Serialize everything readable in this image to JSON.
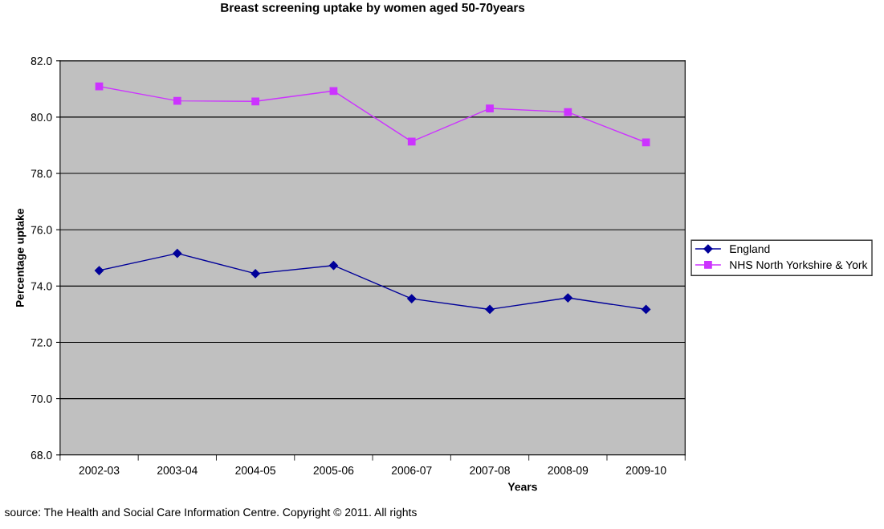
{
  "chart_data": {
    "type": "line",
    "title": "Breast screening uptake by women aged 50-70years",
    "xlabel": "Years",
    "ylabel": "Percentage uptake",
    "categories": [
      "2002-03",
      "2003-04",
      "2004-05",
      "2005-06",
      "2006-07",
      "2007-08",
      "2008-09",
      "2009-10"
    ],
    "series": [
      {
        "name": "England",
        "color": "#000099",
        "marker": "diamond",
        "values": [
          74.55,
          75.16,
          74.44,
          74.73,
          73.55,
          73.17,
          73.58,
          73.17
        ]
      },
      {
        "name": "NHS North Yorkshire & York",
        "color": "#cc33ff",
        "marker": "square",
        "values": [
          81.09,
          80.58,
          80.56,
          80.93,
          79.13,
          80.31,
          80.18,
          79.1
        ]
      }
    ],
    "ylim": [
      68,
      82
    ],
    "yticks": [
      {
        "value": 68,
        "label": "68.0"
      },
      {
        "value": 70,
        "label": "70.0"
      },
      {
        "value": 72,
        "label": "72.0"
      },
      {
        "value": 74,
        "label": "74.0"
      },
      {
        "value": 76,
        "label": "76.0"
      },
      {
        "value": 78,
        "label": "78.0"
      },
      {
        "value": 80,
        "label": "80.0"
      },
      {
        "value": 82,
        "label": "82.0"
      }
    ],
    "grid": "y",
    "legend": "right",
    "line_style": "solid",
    "annotations": [
      "source: The Health and Social Care Information Centre. Copyright © 2011. All rights"
    ]
  }
}
